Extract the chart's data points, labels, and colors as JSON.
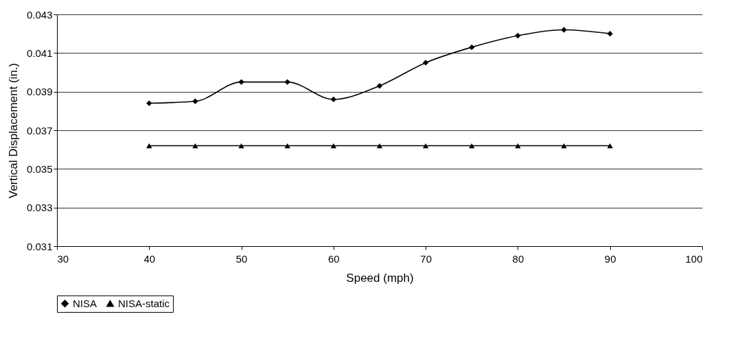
{
  "chart_data": {
    "type": "line",
    "xlabel": "Speed (mph)",
    "ylabel": "Vertical Displacement (in.)",
    "x": [
      40,
      45,
      50,
      55,
      60,
      65,
      70,
      75,
      80,
      85,
      90
    ],
    "series": [
      {
        "name": "NISA",
        "color": "#000000",
        "marker": "diamond",
        "values": [
          0.0384,
          0.0385,
          0.0395,
          0.0395,
          0.0386,
          0.0393,
          0.0405,
          0.0413,
          0.0419,
          0.0422,
          0.042
        ]
      },
      {
        "name": "NISA-static",
        "color": "#000000",
        "marker": "triangle",
        "values": [
          0.0362,
          0.0362,
          0.0362,
          0.0362,
          0.0362,
          0.0362,
          0.0362,
          0.0362,
          0.0362,
          0.0362,
          0.0362
        ]
      }
    ],
    "xlim": [
      30,
      100
    ],
    "xticks": [
      30,
      40,
      50,
      60,
      70,
      80,
      90,
      100
    ],
    "ylim": [
      0.031,
      0.043
    ],
    "yticks": [
      0.031,
      0.033,
      0.035,
      0.037,
      0.039,
      0.041,
      0.043
    ],
    "grid": "y",
    "legend": "bottom",
    "line_style": "solid"
  }
}
